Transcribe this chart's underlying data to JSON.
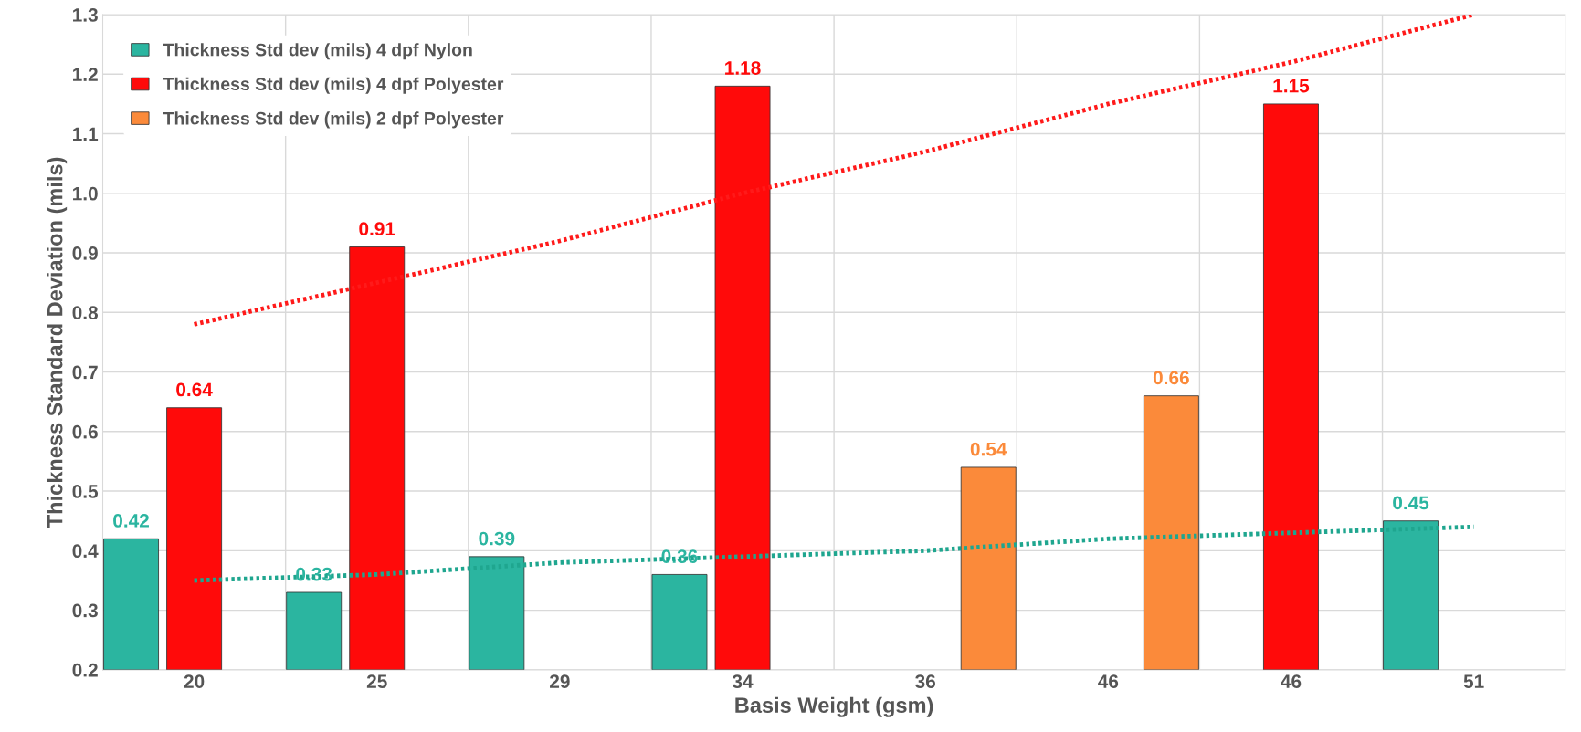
{
  "chart_data": {
    "type": "bar",
    "xlabel": "Basis Weight (gsm)",
    "ylabel": "Thickness Standard Deviation (mils)",
    "categories": [
      "20",
      "25",
      "29",
      "34",
      "36",
      "46",
      "46",
      "51"
    ],
    "series": [
      {
        "name": "Thickness Std dev (mils) 4 dpf Nylon",
        "color": "#2bb5a0",
        "values": [
          0.42,
          0.33,
          0.39,
          0.36,
          null,
          null,
          null,
          0.45
        ],
        "value_labels": [
          "0.42",
          "0.33",
          "0.39",
          "0.36",
          null,
          null,
          null,
          "0.45"
        ]
      },
      {
        "name": "Thickness Std dev (mils) 4 dpf Polyester",
        "color": "#ff0a0a",
        "values": [
          0.64,
          0.91,
          null,
          1.18,
          null,
          null,
          1.15,
          null
        ],
        "value_labels": [
          "0.64",
          "0.91",
          null,
          "1.18",
          null,
          null,
          "1.15",
          null
        ]
      },
      {
        "name": "Thickness Std dev (mils) 2 dpf Polyester",
        "color": "#fb8a3a",
        "values": [
          null,
          null,
          null,
          null,
          0.54,
          0.66,
          null,
          null
        ],
        "value_labels": [
          null,
          null,
          null,
          null,
          "0.54",
          "0.66",
          null,
          null
        ]
      },
      {
        "type": "line",
        "color": "#ff1a1a",
        "line_style": "dotted",
        "values": [
          0.78,
          0.85,
          0.92,
          1.0,
          1.07,
          1.15,
          1.22,
          1.3
        ]
      },
      {
        "type": "line",
        "color": "#1fa68f",
        "line_style": "dotted",
        "values": [
          0.35,
          0.36,
          0.38,
          0.39,
          0.4,
          0.42,
          0.43,
          0.44
        ]
      }
    ],
    "ylim": [
      0.2,
      1.3
    ],
    "yticks": [
      0.2,
      0.3,
      0.4,
      0.5,
      0.6,
      0.7,
      0.8,
      0.9,
      {
        "value": 1.0,
        "label": "1.0"
      },
      1.1,
      1.2,
      1.3
    ],
    "grid": true,
    "legend": "top left"
  }
}
